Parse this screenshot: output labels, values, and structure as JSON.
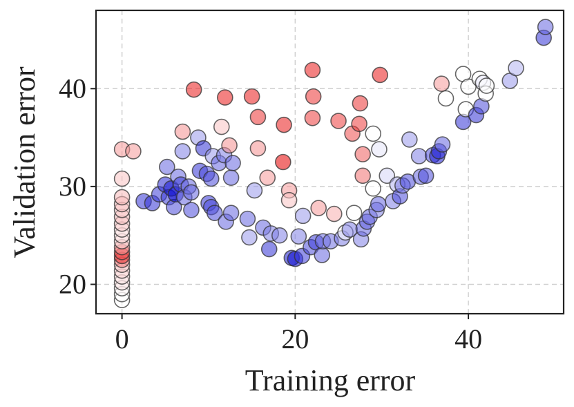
{
  "chart_data": {
    "type": "scatter",
    "xlabel": "Training error",
    "ylabel": "Validation error",
    "xlim": [
      -3,
      51
    ],
    "ylim": [
      17,
      48
    ],
    "xticks": [
      0,
      20,
      40
    ],
    "yticks": [
      20,
      30,
      40
    ],
    "grid": true,
    "color_scale": {
      "low": "#0000cc",
      "mid": "#ffffff",
      "high": "#e60000"
    },
    "points": [
      {
        "x": 0,
        "y": 18.4,
        "c": 0.5
      },
      {
        "x": 0,
        "y": 19.0,
        "c": 0.5
      },
      {
        "x": 0,
        "y": 19.6,
        "c": 0.52
      },
      {
        "x": 0,
        "y": 20.2,
        "c": 0.55
      },
      {
        "x": 0,
        "y": 20.8,
        "c": 0.55
      },
      {
        "x": 0,
        "y": 21.4,
        "c": 0.58
      },
      {
        "x": 0,
        "y": 22.0,
        "c": 0.6
      },
      {
        "x": 0,
        "y": 22.5,
        "c": 0.75
      },
      {
        "x": 0,
        "y": 22.9,
        "c": 0.9
      },
      {
        "x": 0,
        "y": 23.3,
        "c": 0.85
      },
      {
        "x": 0,
        "y": 23.8,
        "c": 0.7
      },
      {
        "x": 0,
        "y": 24.4,
        "c": 0.58
      },
      {
        "x": 0,
        "y": 25.0,
        "c": 0.55
      },
      {
        "x": 0,
        "y": 25.6,
        "c": 0.55
      },
      {
        "x": 0,
        "y": 26.2,
        "c": 0.6
      },
      {
        "x": 0,
        "y": 26.9,
        "c": 0.62
      },
      {
        "x": 0,
        "y": 27.6,
        "c": 0.6
      },
      {
        "x": 0,
        "y": 28.2,
        "c": 0.62
      },
      {
        "x": 0,
        "y": 28.9,
        "c": 0.64
      },
      {
        "x": 0,
        "y": 30.8,
        "c": 0.62
      },
      {
        "x": 0,
        "y": 33.8,
        "c": 0.7
      },
      {
        "x": 1.3,
        "y": 33.6,
        "c": 0.7
      },
      {
        "x": 2.5,
        "y": 28.5,
        "c": 0.1
      },
      {
        "x": 3.5,
        "y": 28.3,
        "c": 0.1
      },
      {
        "x": 4.3,
        "y": 29.2,
        "c": 0.12
      },
      {
        "x": 5.0,
        "y": 30.2,
        "c": 0.08
      },
      {
        "x": 5.4,
        "y": 28.9,
        "c": 0.12
      },
      {
        "x": 5.2,
        "y": 32.0,
        "c": 0.2
      },
      {
        "x": 5.7,
        "y": 29.8,
        "c": 0.05
      },
      {
        "x": 6.0,
        "y": 27.9,
        "c": 0.15
      },
      {
        "x": 6.2,
        "y": 29.2,
        "c": 0.02
      },
      {
        "x": 6.5,
        "y": 31.0,
        "c": 0.2
      },
      {
        "x": 6.8,
        "y": 30.2,
        "c": 0.12
      },
      {
        "x": 7.2,
        "y": 28.9,
        "c": 0.2
      },
      {
        "x": 7.7,
        "y": 30.0,
        "c": 0.2
      },
      {
        "x": 8.0,
        "y": 29.4,
        "c": 0.2
      },
      {
        "x": 7.0,
        "y": 33.6,
        "c": 0.25
      },
      {
        "x": 7.0,
        "y": 35.6,
        "c": 0.72
      },
      {
        "x": 8.0,
        "y": 27.6,
        "c": 0.15
      },
      {
        "x": 8.8,
        "y": 35.0,
        "c": 0.3
      },
      {
        "x": 9.0,
        "y": 31.6,
        "c": 0.1
      },
      {
        "x": 9.4,
        "y": 33.9,
        "c": 0.1
      },
      {
        "x": 9.8,
        "y": 31.3,
        "c": 0.15
      },
      {
        "x": 10.3,
        "y": 30.8,
        "c": 0.15
      },
      {
        "x": 10.0,
        "y": 28.3,
        "c": 0.1
      },
      {
        "x": 10.3,
        "y": 27.9,
        "c": 0.15
      },
      {
        "x": 10.7,
        "y": 27.3,
        "c": 0.15
      },
      {
        "x": 10.5,
        "y": 33.1,
        "c": 0.3
      },
      {
        "x": 11.2,
        "y": 32.4,
        "c": 0.2
      },
      {
        "x": 11.5,
        "y": 36.1,
        "c": 0.62
      },
      {
        "x": 11.8,
        "y": 33.2,
        "c": 0.25
      },
      {
        "x": 12.0,
        "y": 26.4,
        "c": 0.2
      },
      {
        "x": 12.4,
        "y": 34.2,
        "c": 0.72
      },
      {
        "x": 12.6,
        "y": 27.3,
        "c": 0.2
      },
      {
        "x": 12.6,
        "y": 30.9,
        "c": 0.2
      },
      {
        "x": 12.8,
        "y": 32.4,
        "c": 0.2
      },
      {
        "x": 8.3,
        "y": 39.9,
        "c": 0.95
      },
      {
        "x": 11.9,
        "y": 39.1,
        "c": 0.95
      },
      {
        "x": 14.5,
        "y": 26.7,
        "c": 0.2
      },
      {
        "x": 14.7,
        "y": 24.8,
        "c": 0.3
      },
      {
        "x": 15.0,
        "y": 39.2,
        "c": 0.95
      },
      {
        "x": 15.3,
        "y": 29.6,
        "c": 0.3
      },
      {
        "x": 15.7,
        "y": 37.1,
        "c": 0.9
      },
      {
        "x": 15.7,
        "y": 33.9,
        "c": 0.72
      },
      {
        "x": 16.3,
        "y": 25.8,
        "c": 0.2
      },
      {
        "x": 16.8,
        "y": 30.9,
        "c": 0.7
      },
      {
        "x": 17.2,
        "y": 25.2,
        "c": 0.25
      },
      {
        "x": 17.0,
        "y": 23.6,
        "c": 0.1
      },
      {
        "x": 18.2,
        "y": 25.0,
        "c": 0.25
      },
      {
        "x": 18.6,
        "y": 32.5,
        "c": 1.0
      },
      {
        "x": 18.7,
        "y": 36.3,
        "c": 0.95
      },
      {
        "x": 19.3,
        "y": 29.6,
        "c": 0.7
      },
      {
        "x": 19.3,
        "y": 28.6,
        "c": 0.62
      },
      {
        "x": 19.6,
        "y": 22.7,
        "c": 0.05
      },
      {
        "x": 20.0,
        "y": 22.6,
        "c": 0.02
      },
      {
        "x": 20.4,
        "y": 24.9,
        "c": 0.25
      },
      {
        "x": 20.8,
        "y": 22.9,
        "c": 0.12
      },
      {
        "x": 20.9,
        "y": 27.0,
        "c": 0.3
      },
      {
        "x": 21.8,
        "y": 23.8,
        "c": 0.15
      },
      {
        "x": 22.0,
        "y": 37.0,
        "c": 0.88
      },
      {
        "x": 22.1,
        "y": 39.2,
        "c": 0.9
      },
      {
        "x": 22.0,
        "y": 41.9,
        "c": 0.95
      },
      {
        "x": 22.4,
        "y": 24.3,
        "c": 0.12
      },
      {
        "x": 22.7,
        "y": 27.8,
        "c": 0.7
      },
      {
        "x": 23.1,
        "y": 23.0,
        "c": 0.2
      },
      {
        "x": 23.2,
        "y": 24.4,
        "c": 0.2
      },
      {
        "x": 24.1,
        "y": 24.4,
        "c": 0.22
      },
      {
        "x": 24.5,
        "y": 27.2,
        "c": 0.66
      },
      {
        "x": 25.0,
        "y": 36.7,
        "c": 0.88
      },
      {
        "x": 25.4,
        "y": 24.7,
        "c": 0.25
      },
      {
        "x": 25.8,
        "y": 25.3,
        "c": 0.5
      },
      {
        "x": 26.3,
        "y": 25.6,
        "c": 0.25
      },
      {
        "x": 26.6,
        "y": 35.4,
        "c": 0.85
      },
      {
        "x": 26.8,
        "y": 27.3,
        "c": 0.5
      },
      {
        "x": 27.4,
        "y": 36.4,
        "c": 0.88
      },
      {
        "x": 27.5,
        "y": 38.5,
        "c": 0.9
      },
      {
        "x": 27.6,
        "y": 24.6,
        "c": 0.25
      },
      {
        "x": 27.9,
        "y": 25.7,
        "c": 0.2
      },
      {
        "x": 27.8,
        "y": 33.3,
        "c": 0.82
      },
      {
        "x": 27.8,
        "y": 31.1,
        "c": 0.78
      },
      {
        "x": 28.3,
        "y": 26.4,
        "c": 0.2
      },
      {
        "x": 28.6,
        "y": 26.9,
        "c": 0.2
      },
      {
        "x": 29.0,
        "y": 29.8,
        "c": 0.5
      },
      {
        "x": 29.0,
        "y": 35.4,
        "c": 0.5
      },
      {
        "x": 29.4,
        "y": 27.6,
        "c": 0.25
      },
      {
        "x": 29.6,
        "y": 28.2,
        "c": 0.2
      },
      {
        "x": 29.7,
        "y": 33.8,
        "c": 0.45
      },
      {
        "x": 29.8,
        "y": 41.4,
        "c": 0.95
      },
      {
        "x": 30.6,
        "y": 31.1,
        "c": 0.42
      },
      {
        "x": 31.3,
        "y": 28.5,
        "c": 0.25
      },
      {
        "x": 31.8,
        "y": 30.2,
        "c": 0.35
      },
      {
        "x": 32.1,
        "y": 29.0,
        "c": 0.15
      },
      {
        "x": 32.4,
        "y": 30.1,
        "c": 0.25
      },
      {
        "x": 33.0,
        "y": 30.5,
        "c": 0.15
      },
      {
        "x": 33.2,
        "y": 34.8,
        "c": 0.3
      },
      {
        "x": 34.3,
        "y": 33.1,
        "c": 0.25
      },
      {
        "x": 34.5,
        "y": 31.0,
        "c": 0.2
      },
      {
        "x": 35.1,
        "y": 31.1,
        "c": 0.15
      },
      {
        "x": 35.9,
        "y": 33.2,
        "c": 0.15
      },
      {
        "x": 36.4,
        "y": 33.1,
        "c": 0.05
      },
      {
        "x": 36.6,
        "y": 33.6,
        "c": 0.1
      },
      {
        "x": 36.9,
        "y": 40.5,
        "c": 0.7
      },
      {
        "x": 37.0,
        "y": 34.3,
        "c": 0.2
      },
      {
        "x": 37.4,
        "y": 39.0,
        "c": 0.5
      },
      {
        "x": 39.4,
        "y": 41.5,
        "c": 0.5
      },
      {
        "x": 39.4,
        "y": 36.6,
        "c": 0.1
      },
      {
        "x": 39.7,
        "y": 37.9,
        "c": 0.5
      },
      {
        "x": 40.0,
        "y": 40.2,
        "c": 0.5
      },
      {
        "x": 40.9,
        "y": 37.3,
        "c": 0.1
      },
      {
        "x": 41.3,
        "y": 41.0,
        "c": 0.5
      },
      {
        "x": 41.5,
        "y": 38.2,
        "c": 0.15
      },
      {
        "x": 41.7,
        "y": 40.6,
        "c": 0.45
      },
      {
        "x": 42.0,
        "y": 39.5,
        "c": 0.5
      },
      {
        "x": 42.1,
        "y": 40.3,
        "c": 0.5
      },
      {
        "x": 44.8,
        "y": 40.8,
        "c": 0.3
      },
      {
        "x": 45.5,
        "y": 42.1,
        "c": 0.35
      },
      {
        "x": 48.7,
        "y": 45.2,
        "c": 0.1
      },
      {
        "x": 48.9,
        "y": 46.3,
        "c": 0.2
      }
    ]
  }
}
